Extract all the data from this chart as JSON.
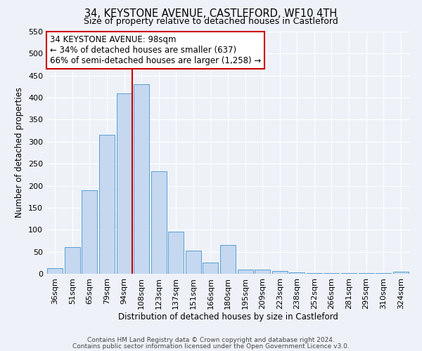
{
  "title": "34, KEYSTONE AVENUE, CASTLEFORD, WF10 4TH",
  "subtitle": "Size of property relative to detached houses in Castleford",
  "xlabel": "Distribution of detached houses by size in Castleford",
  "ylabel": "Number of detached properties",
  "bar_color": "#c5d8f0",
  "bar_edge_color": "#5a9fd4",
  "categories": [
    "36sqm",
    "51sqm",
    "65sqm",
    "79sqm",
    "94sqm",
    "108sqm",
    "123sqm",
    "137sqm",
    "151sqm",
    "166sqm",
    "180sqm",
    "195sqm",
    "209sqm",
    "223sqm",
    "238sqm",
    "252sqm",
    "266sqm",
    "281sqm",
    "295sqm",
    "310sqm",
    "324sqm"
  ],
  "values": [
    12,
    60,
    190,
    315,
    410,
    430,
    232,
    95,
    53,
    25,
    65,
    10,
    10,
    7,
    3,
    2,
    1,
    1,
    1,
    1,
    4
  ],
  "ylim": [
    0,
    550
  ],
  "yticks": [
    0,
    50,
    100,
    150,
    200,
    250,
    300,
    350,
    400,
    450,
    500,
    550
  ],
  "vline_x_index": 4,
  "vline_color": "#cc0000",
  "annotation_title": "34 KEYSTONE AVENUE: 98sqm",
  "annotation_line1": "← 34% of detached houses are smaller (637)",
  "annotation_line2": "66% of semi-detached houses are larger (1,258) →",
  "annotation_box_color": "#ffffff",
  "annotation_box_edge": "#cc0000",
  "footer1": "Contains HM Land Registry data © Crown copyright and database right 2024.",
  "footer2": "Contains public sector information licensed under the Open Government Licence v3.0.",
  "background_color": "#eef2f8",
  "title_fontsize": 10.5,
  "subtitle_fontsize": 9,
  "axis_label_fontsize": 8.5,
  "tick_fontsize": 8,
  "annot_fontsize": 8.5,
  "footer_fontsize": 6.5
}
